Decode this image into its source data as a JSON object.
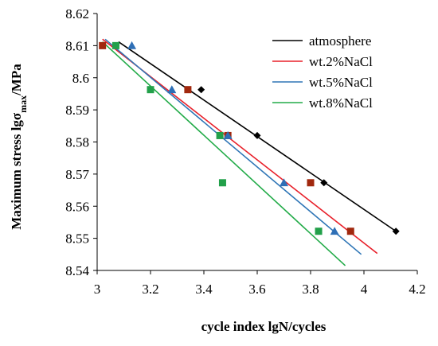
{
  "chart_data": {
    "type": "scatter",
    "xlabel": "cycle index lgN/cycles",
    "ylabel_parts": [
      "Maximum stress lgσ",
      "max",
      "/MPa"
    ],
    "xlim": [
      3,
      4.2
    ],
    "ylim": [
      8.54,
      8.62
    ],
    "x_ticks": [
      "3",
      "3.2",
      "3.4",
      "3.6",
      "3.8",
      "4",
      "4.2"
    ],
    "y_ticks": [
      "8.54",
      "8.55",
      "8.56",
      "8.57",
      "8.58",
      "8.59",
      "8.6",
      "8.61",
      "8.62"
    ],
    "grid": false,
    "legend_position": "top-right",
    "series": [
      {
        "name": "atmosphere",
        "line_color": "#000000",
        "marker": "diamond",
        "marker_color": "#000000",
        "points": [
          [
            3.07,
            8.61
          ],
          [
            3.39,
            8.5963
          ],
          [
            3.6,
            8.582
          ],
          [
            3.85,
            8.5673
          ],
          [
            4.12,
            8.5522
          ]
        ],
        "fit": [
          [
            3.08,
            8.6112
          ],
          [
            4.12,
            8.5522
          ]
        ]
      },
      {
        "name": "wt.2%NaCl",
        "line_color": "#e8202a",
        "marker": "square",
        "marker_color": "#a1280e",
        "points": [
          [
            3.02,
            8.61
          ],
          [
            3.34,
            8.5963
          ],
          [
            3.49,
            8.582
          ],
          [
            3.8,
            8.5673
          ],
          [
            3.95,
            8.5522
          ]
        ],
        "fit": [
          [
            3.02,
            8.612
          ],
          [
            4.05,
            8.5453
          ]
        ]
      },
      {
        "name": "wt.5%NaCl",
        "line_color": "#2e75b6",
        "marker": "triangle",
        "marker_color": "#2e6fb6",
        "points": [
          [
            3.13,
            8.61
          ],
          [
            3.28,
            8.5963
          ],
          [
            3.49,
            8.582
          ],
          [
            3.7,
            8.5673
          ],
          [
            3.89,
            8.5522
          ]
        ],
        "fit": [
          [
            3.03,
            8.612
          ],
          [
            3.99,
            8.545
          ]
        ]
      },
      {
        "name": "wt.8%NaCl",
        "line_color": "#22ab48",
        "marker": "square",
        "marker_color": "#22a04a",
        "points": [
          [
            3.07,
            8.61
          ],
          [
            3.2,
            8.5963
          ],
          [
            3.46,
            8.582
          ],
          [
            3.47,
            8.5673
          ],
          [
            3.83,
            8.5522
          ]
        ],
        "fit": [
          [
            3.02,
            8.6112
          ],
          [
            3.93,
            8.5415
          ]
        ]
      }
    ]
  }
}
